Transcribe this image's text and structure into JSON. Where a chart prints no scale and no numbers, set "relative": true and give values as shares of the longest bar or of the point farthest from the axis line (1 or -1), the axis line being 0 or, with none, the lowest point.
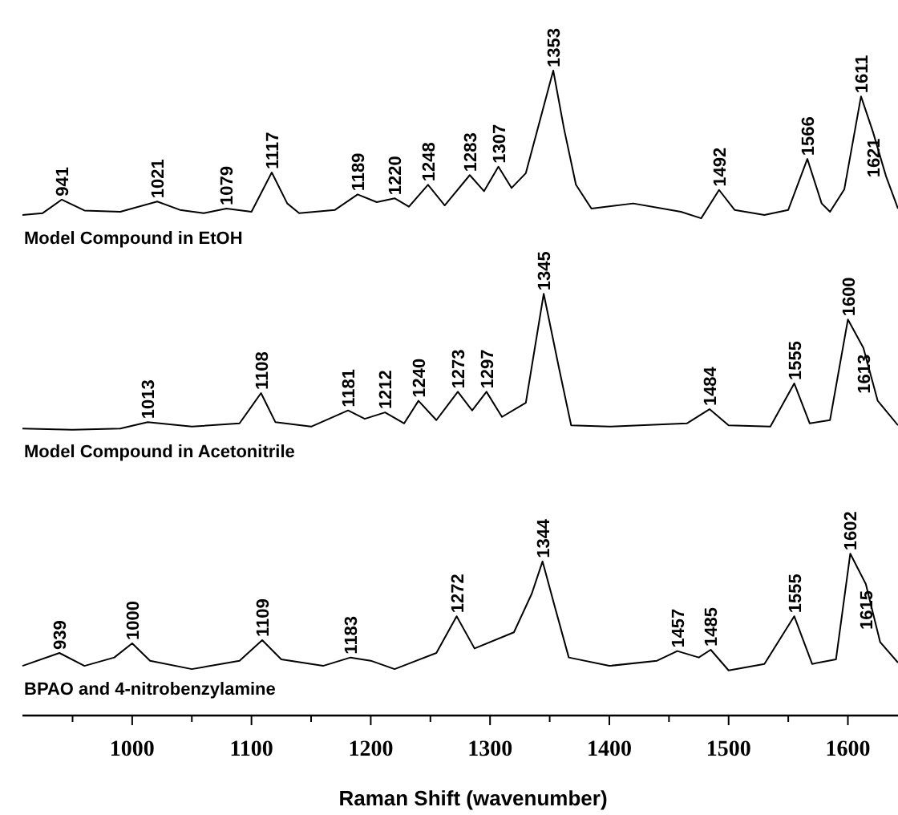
{
  "chart_data": {
    "type": "line",
    "relative": true,
    "xlabel": "Raman Shift (wavenumber)",
    "xlim": [
      908,
      1642
    ],
    "xticks": [
      {
        "value": 950,
        "label": null
      },
      1000,
      {
        "value": 1050,
        "label": null
      },
      1100,
      {
        "value": 1150,
        "label": null
      },
      1200,
      {
        "value": 1250,
        "label": null
      },
      1300,
      {
        "value": 1350,
        "label": null
      },
      1400,
      {
        "value": 1450,
        "label": null
      },
      1500,
      {
        "value": 1550,
        "label": null
      },
      1600
    ],
    "line_style": "solid",
    "series": [
      {
        "name": "Model Compound in EtOH",
        "color": "#000000",
        "x": [
          908,
          925,
          941,
          960,
          990,
          1021,
          1040,
          1060,
          1079,
          1100,
          1117,
          1130,
          1140,
          1170,
          1189,
          1205,
          1220,
          1232,
          1248,
          1262,
          1283,
          1295,
          1307,
          1318,
          1330,
          1340,
          1353,
          1362,
          1372,
          1385,
          1420,
          1460,
          1477,
          1492,
          1505,
          1530,
          1550,
          1566,
          1578,
          1585,
          1597,
          1611,
          1621,
          1632,
          1642
        ],
        "values": [
          0.776,
          0.779,
          0.8,
          0.783,
          0.781,
          0.797,
          0.784,
          0.779,
          0.786,
          0.781,
          0.842,
          0.794,
          0.779,
          0.784,
          0.808,
          0.796,
          0.802,
          0.789,
          0.823,
          0.791,
          0.838,
          0.813,
          0.851,
          0.818,
          0.841,
          0.91,
          1.0,
          0.91,
          0.823,
          0.786,
          0.794,
          0.781,
          0.771,
          0.815,
          0.784,
          0.776,
          0.784,
          0.863,
          0.794,
          0.781,
          0.816,
          0.96,
          0.905,
          0.836,
          0.786
        ]
      },
      {
        "name": "Model Compound in Acetonitrile",
        "color": "#000000",
        "x": [
          908,
          950,
          990,
          1013,
          1050,
          1090,
          1108,
          1120,
          1150,
          1181,
          1195,
          1212,
          1228,
          1240,
          1255,
          1273,
          1285,
          1297,
          1310,
          1330,
          1345,
          1358,
          1368,
          1400,
          1465,
          1484,
          1500,
          1535,
          1555,
          1568,
          1585,
          1600,
          1613,
          1625,
          1642
        ],
        "values": [
          0.445,
          0.443,
          0.445,
          0.455,
          0.448,
          0.453,
          0.5,
          0.455,
          0.448,
          0.473,
          0.46,
          0.47,
          0.453,
          0.488,
          0.458,
          0.502,
          0.473,
          0.502,
          0.463,
          0.485,
          0.654,
          0.537,
          0.45,
          0.448,
          0.453,
          0.475,
          0.45,
          0.448,
          0.515,
          0.453,
          0.458,
          0.614,
          0.57,
          0.488,
          0.45
        ]
      },
      {
        "name": "BPAO and 4-nitrobenzylamine",
        "color": "#000000",
        "x": [
          908,
          939,
          960,
          985,
          1000,
          1015,
          1050,
          1090,
          1109,
          1125,
          1160,
          1183,
          1200,
          1220,
          1255,
          1272,
          1287,
          1320,
          1335,
          1344,
          1355,
          1366,
          1400,
          1440,
          1457,
          1475,
          1485,
          1500,
          1530,
          1555,
          1570,
          1590,
          1602,
          1615,
          1627,
          1642
        ],
        "values": [
          0.077,
          0.097,
          0.077,
          0.09,
          0.112,
          0.085,
          0.072,
          0.085,
          0.117,
          0.087,
          0.077,
          0.09,
          0.085,
          0.072,
          0.097,
          0.154,
          0.104,
          0.129,
          0.189,
          0.239,
          0.164,
          0.09,
          0.077,
          0.085,
          0.1,
          0.09,
          0.102,
          0.07,
          0.08,
          0.154,
          0.08,
          0.087,
          0.251,
          0.204,
          0.114,
          0.082
        ]
      }
    ],
    "annotations": [
      {
        "text": "941",
        "x": 941,
        "y": 0.8
      },
      {
        "text": "1021",
        "x": 1021,
        "y": 0.797
      },
      {
        "text": "1079",
        "x": 1079,
        "y": 0.786
      },
      {
        "text": "1117",
        "x": 1117,
        "y": 0.842
      },
      {
        "text": "1189",
        "x": 1189,
        "y": 0.808
      },
      {
        "text": "1220",
        "x": 1220,
        "y": 0.802
      },
      {
        "text": "1248",
        "x": 1248,
        "y": 0.823
      },
      {
        "text": "1283",
        "x": 1283,
        "y": 0.838
      },
      {
        "text": "1307",
        "x": 1307,
        "y": 0.851
      },
      {
        "text": "1353",
        "x": 1353,
        "y": 1.0
      },
      {
        "text": "1492",
        "x": 1492,
        "y": 0.815
      },
      {
        "text": "1566",
        "x": 1566,
        "y": 0.863
      },
      {
        "text": "1611",
        "x": 1611,
        "y": 0.96
      },
      {
        "text": "1621",
        "x": 1621,
        "y": 0.905
      },
      {
        "text": "1013",
        "x": 1013,
        "y": 0.455
      },
      {
        "text": "1108",
        "x": 1108,
        "y": 0.5
      },
      {
        "text": "1181",
        "x": 1181,
        "y": 0.473
      },
      {
        "text": "1212",
        "x": 1212,
        "y": 0.47
      },
      {
        "text": "1240",
        "x": 1240,
        "y": 0.488
      },
      {
        "text": "1273",
        "x": 1273,
        "y": 0.502
      },
      {
        "text": "1297",
        "x": 1297,
        "y": 0.502
      },
      {
        "text": "1345",
        "x": 1345,
        "y": 0.654
      },
      {
        "text": "1484",
        "x": 1484,
        "y": 0.475
      },
      {
        "text": "1555",
        "x": 1555,
        "y": 0.515
      },
      {
        "text": "1600",
        "x": 1600,
        "y": 0.614
      },
      {
        "text": "1613",
        "x": 1613,
        "y": 0.57
      },
      {
        "text": "939",
        "x": 939,
        "y": 0.097
      },
      {
        "text": "1000",
        "x": 1000,
        "y": 0.112
      },
      {
        "text": "1109",
        "x": 1109,
        "y": 0.117
      },
      {
        "text": "1183",
        "x": 1183,
        "y": 0.09
      },
      {
        "text": "1272",
        "x": 1272,
        "y": 0.154
      },
      {
        "text": "1344",
        "x": 1344,
        "y": 0.239
      },
      {
        "text": "1457",
        "x": 1457,
        "y": 0.1
      },
      {
        "text": "1485",
        "x": 1485,
        "y": 0.102
      },
      {
        "text": "1555",
        "x": 1555,
        "y": 0.154
      },
      {
        "text": "1602",
        "x": 1602,
        "y": 0.251
      },
      {
        "text": "1615",
        "x": 1615,
        "y": 0.204
      }
    ]
  }
}
